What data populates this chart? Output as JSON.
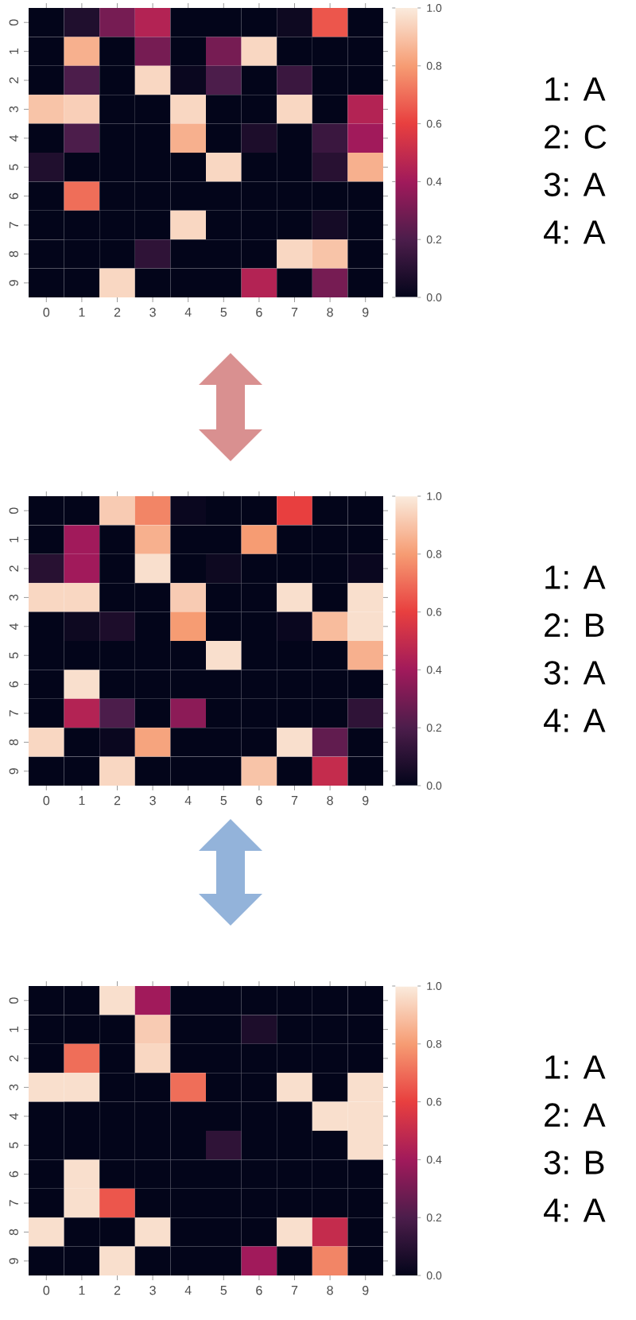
{
  "chart_data": [
    {
      "type": "heatmap",
      "categories": [
        "0",
        "1",
        "2",
        "3",
        "4",
        "5",
        "6",
        "7",
        "8",
        "9"
      ],
      "y_categories": [
        "0",
        "1",
        "2",
        "3",
        "4",
        "5",
        "6",
        "7",
        "8",
        "9"
      ],
      "cells": [
        [
          0,
          0.08,
          0.3,
          0.45,
          0,
          0,
          0,
          0.03,
          0.65,
          0
        ],
        [
          0,
          0.85,
          0,
          0.3,
          0,
          0.3,
          0.95,
          0,
          0,
          0
        ],
        [
          0,
          0.2,
          0,
          0.95,
          0.02,
          0.2,
          0,
          0.15,
          0,
          0
        ],
        [
          0.9,
          0.93,
          0,
          0,
          0.95,
          0,
          0,
          0.95,
          0,
          0.45
        ],
        [
          0,
          0.2,
          0,
          0,
          0.85,
          0,
          0.07,
          0,
          0.15,
          0.4
        ],
        [
          0.08,
          0,
          0,
          0,
          0,
          0.95,
          0,
          0,
          0.1,
          0.85
        ],
        [
          0,
          0.7,
          0,
          0,
          0,
          0,
          0,
          0,
          0,
          0
        ],
        [
          0,
          0,
          0,
          0,
          0.95,
          0,
          0,
          0,
          0.05,
          0
        ],
        [
          0,
          0,
          0,
          0.12,
          0,
          0,
          0,
          0.95,
          0.9,
          0
        ],
        [
          0,
          0,
          0.95,
          0,
          0,
          0,
          0.45,
          0,
          0.3,
          0
        ]
      ],
      "clim": [
        0,
        1
      ],
      "cticks": [
        {
          "value": 0,
          "label": "0.0"
        },
        {
          "value": 0.2,
          "label": "0.2"
        },
        {
          "value": 0.4,
          "label": "0.4"
        },
        {
          "value": 0.6,
          "label": "0.6"
        },
        {
          "value": 0.8,
          "label": "0.8"
        },
        {
          "value": 1,
          "label": "1.0"
        }
      ],
      "annotations": [
        "1: A",
        "2: C",
        "3: A",
        "4: A"
      ]
    },
    {
      "type": "heatmap",
      "categories": [
        "0",
        "1",
        "2",
        "3",
        "4",
        "5",
        "6",
        "7",
        "8",
        "9"
      ],
      "y_categories": [
        "0",
        "1",
        "2",
        "3",
        "4",
        "5",
        "6",
        "7",
        "8",
        "9"
      ],
      "cells": [
        [
          0,
          0,
          0.92,
          0.75,
          0.02,
          0,
          0,
          0.6,
          0,
          0
        ],
        [
          0,
          0.4,
          0,
          0.85,
          0,
          0,
          0.8,
          0,
          0,
          0
        ],
        [
          0.1,
          0.4,
          0,
          0.97,
          0,
          0.03,
          0,
          0,
          0,
          0.02
        ],
        [
          0.95,
          0.95,
          0,
          0,
          0.92,
          0,
          0,
          0.97,
          0,
          0.97
        ],
        [
          0,
          0.03,
          0.07,
          0,
          0.8,
          0,
          0,
          0.02,
          0.88,
          0.97
        ],
        [
          0,
          0,
          0,
          0,
          0,
          0.97,
          0,
          0,
          0,
          0.85
        ],
        [
          0,
          0.97,
          0,
          0,
          0,
          0,
          0,
          0,
          0,
          0
        ],
        [
          0,
          0.45,
          0.2,
          0,
          0.35,
          0,
          0,
          0,
          0,
          0.12
        ],
        [
          0.95,
          0,
          0.02,
          0.82,
          0,
          0,
          0,
          0.97,
          0.25,
          0
        ],
        [
          0,
          0,
          0.95,
          0,
          0,
          0,
          0.9,
          0,
          0.5,
          0
        ]
      ],
      "clim": [
        0,
        1
      ],
      "cticks": [
        {
          "value": 0,
          "label": "0.0"
        },
        {
          "value": 0.2,
          "label": "0.2"
        },
        {
          "value": 0.4,
          "label": "0.4"
        },
        {
          "value": 0.6,
          "label": "0.6"
        },
        {
          "value": 0.8,
          "label": "0.8"
        },
        {
          "value": 1,
          "label": "1.0"
        }
      ],
      "annotations": [
        "1: A",
        "2: B",
        "3: A",
        "4: A"
      ]
    },
    {
      "type": "heatmap",
      "categories": [
        "0",
        "1",
        "2",
        "3",
        "4",
        "5",
        "6",
        "7",
        "8",
        "9"
      ],
      "y_categories": [
        "0",
        "1",
        "2",
        "3",
        "4",
        "5",
        "6",
        "7",
        "8",
        "9"
      ],
      "cells": [
        [
          0,
          0,
          0.97,
          0.4,
          0,
          0,
          0,
          0,
          0,
          0
        ],
        [
          0,
          0,
          0,
          0.92,
          0,
          0,
          0.07,
          0,
          0,
          0
        ],
        [
          0,
          0.7,
          0,
          0.95,
          0,
          0,
          0,
          0,
          0,
          0
        ],
        [
          0.97,
          0.97,
          0,
          0,
          0.7,
          0,
          0,
          0.97,
          0,
          0.97
        ],
        [
          0,
          0,
          0,
          0,
          0,
          0,
          0,
          0,
          0.97,
          0.97
        ],
        [
          0,
          0,
          0,
          0,
          0,
          0.12,
          0,
          0,
          0,
          0.97
        ],
        [
          0,
          0.97,
          0,
          0,
          0,
          0,
          0,
          0,
          0,
          0
        ],
        [
          0,
          0.97,
          0.65,
          0,
          0,
          0,
          0,
          0,
          0,
          0
        ],
        [
          0.97,
          0,
          0,
          0.97,
          0,
          0,
          0,
          0.97,
          0.5,
          0
        ],
        [
          0,
          0,
          0.97,
          0,
          0,
          0,
          0.4,
          0,
          0.75,
          0
        ]
      ],
      "clim": [
        0,
        1
      ],
      "cticks": [
        {
          "value": 0,
          "label": "0.0"
        },
        {
          "value": 0.2,
          "label": "0.2"
        },
        {
          "value": 0.4,
          "label": "0.4"
        },
        {
          "value": 0.6,
          "label": "0.6"
        },
        {
          "value": 0.8,
          "label": "0.8"
        },
        {
          "value": 1,
          "label": "1.0"
        }
      ],
      "annotations": [
        "1: A",
        "2: A",
        "3: B",
        "4: A"
      ]
    }
  ]
}
